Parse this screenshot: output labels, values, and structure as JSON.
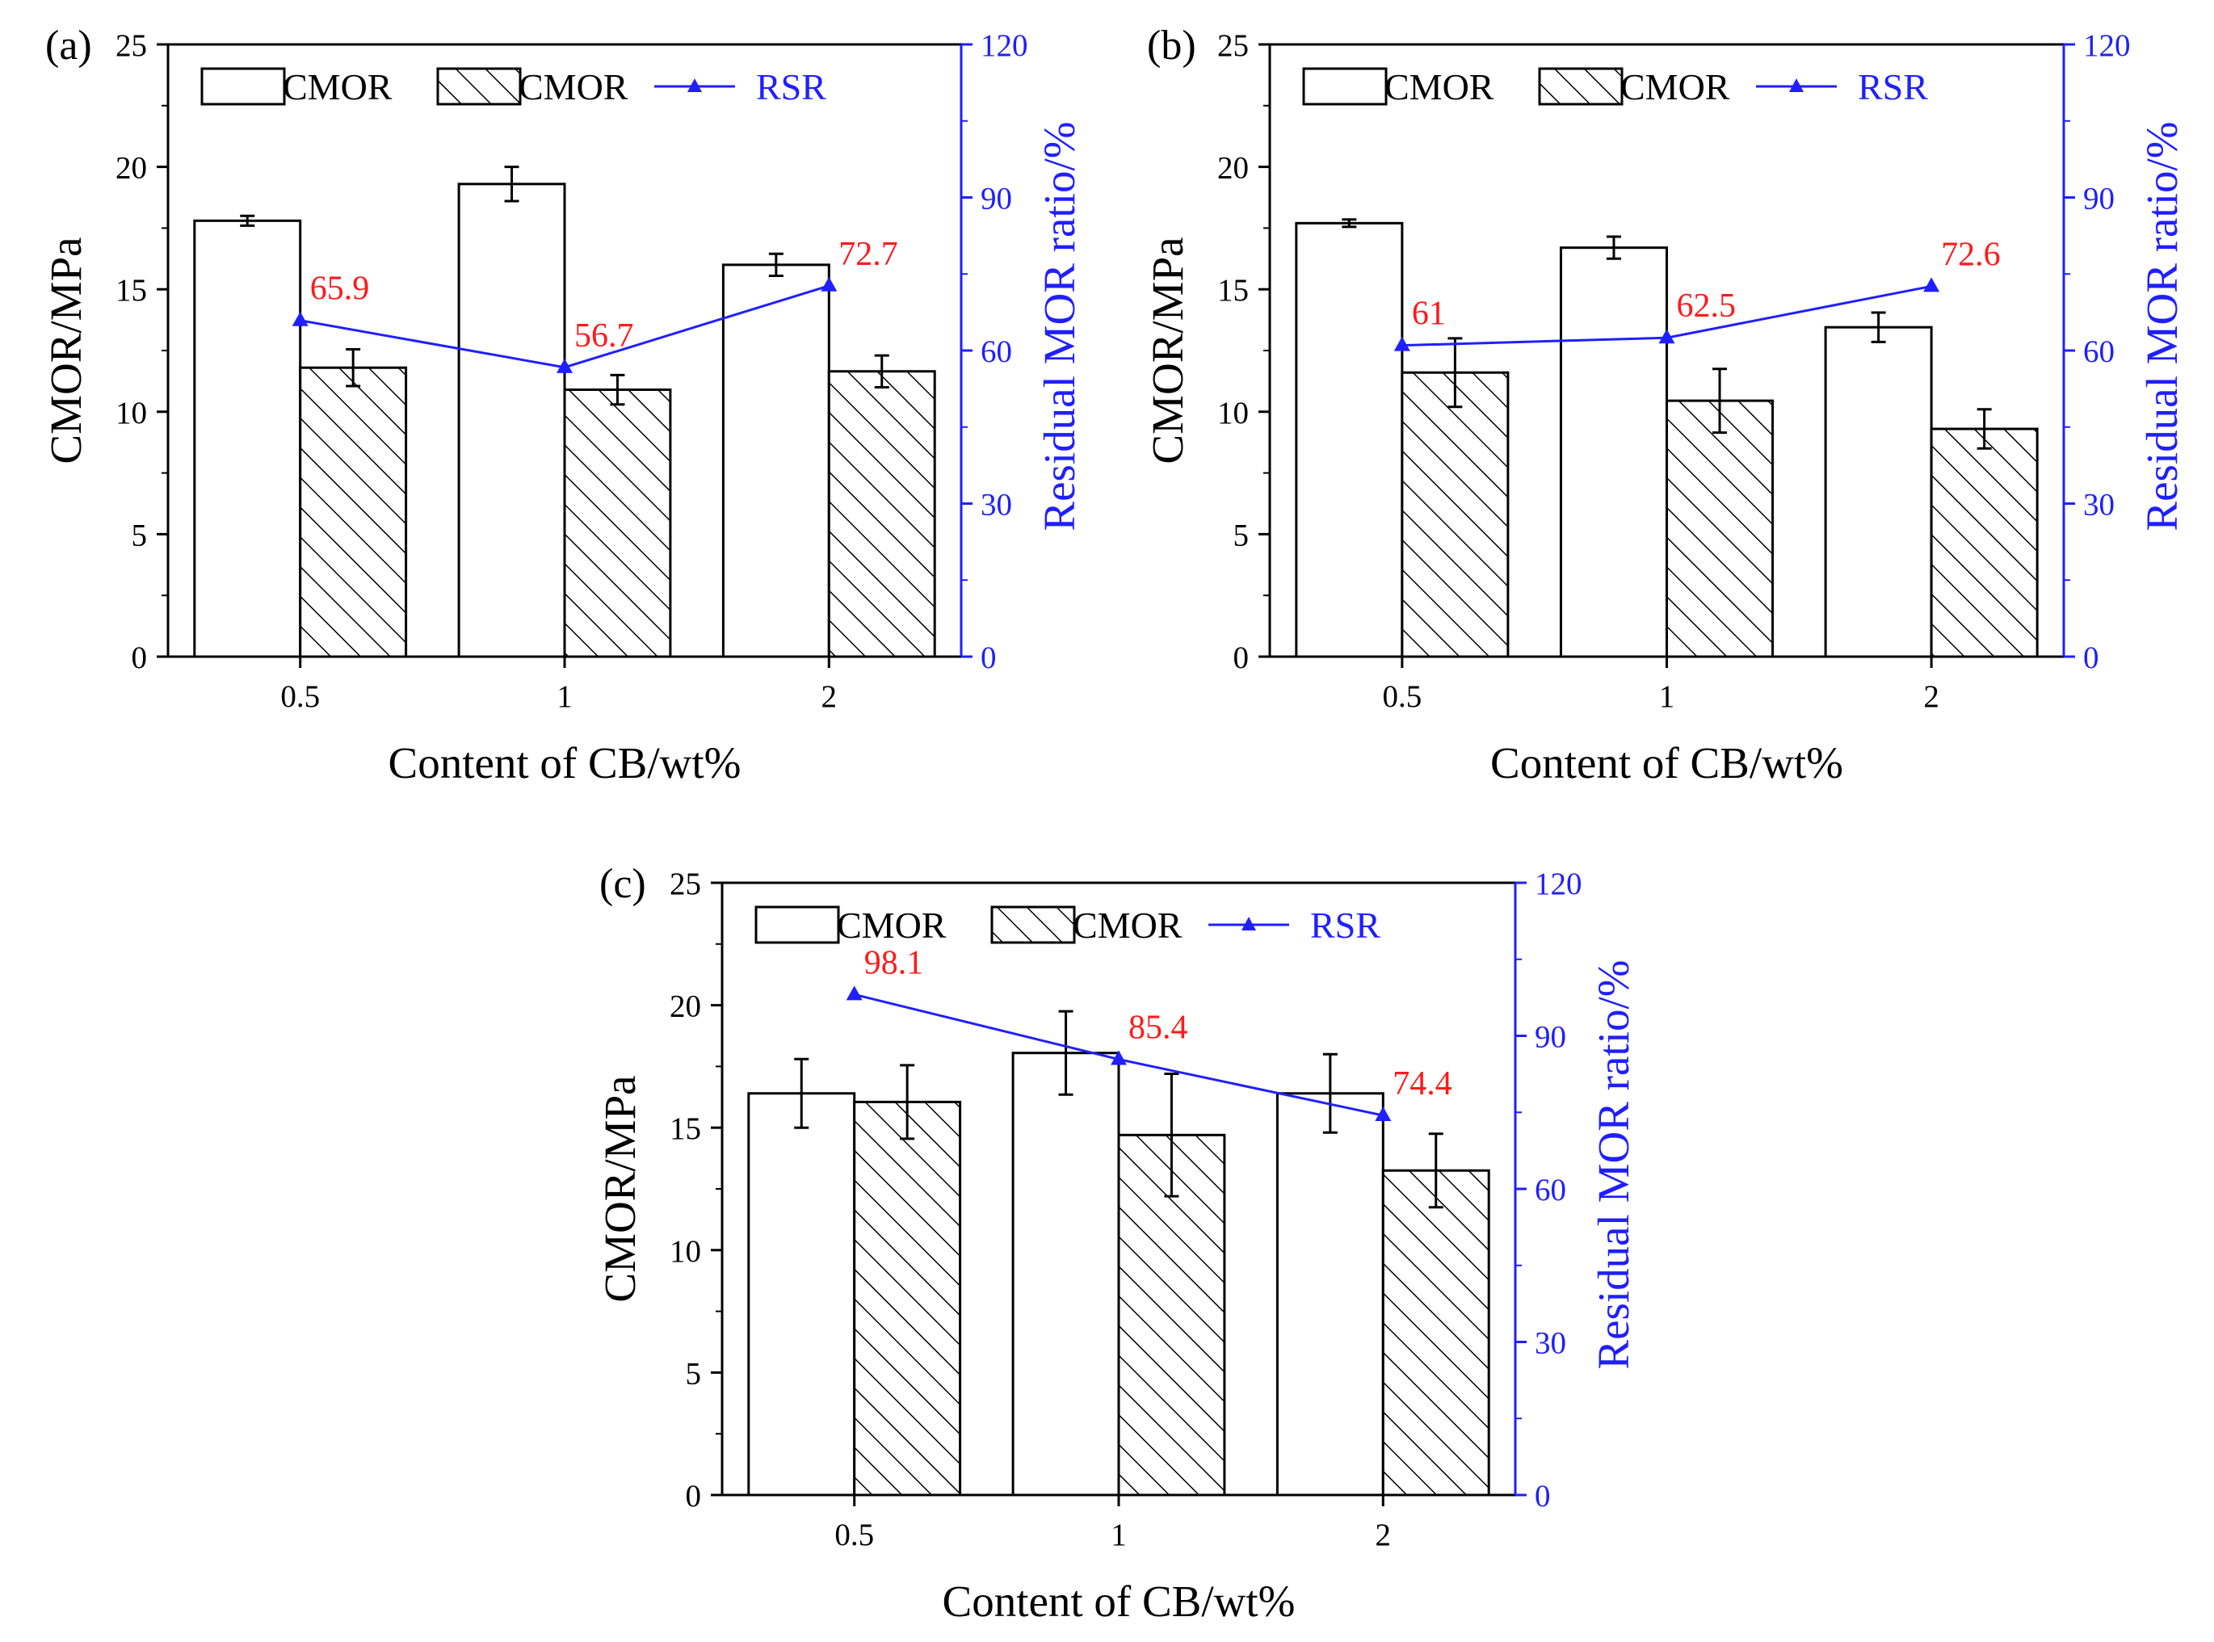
{
  "chart_data": [
    {
      "panel": "(a)",
      "type": "bar",
      "categories": [
        "0.5",
        "1",
        "2"
      ],
      "series": [
        {
          "name": "CMOR",
          "pattern": "open",
          "values": [
            17.8,
            19.3,
            16.0
          ],
          "errors": [
            0.2,
            0.7,
            0.45
          ]
        },
        {
          "name": "CMOR",
          "pattern": "hatched",
          "values": [
            11.8,
            10.9,
            11.65
          ],
          "errors": [
            0.75,
            0.6,
            0.65
          ]
        },
        {
          "name": "RSR",
          "kind": "line",
          "axis": "right",
          "values": [
            65.9,
            56.7,
            72.7
          ],
          "labels": [
            "65.9",
            "56.7",
            "72.7"
          ]
        }
      ],
      "xlabel": "Content of CB/wt%",
      "ylabel": "CMOR/MPa",
      "y2label": "Residual MOR ratio/%",
      "ylim": [
        0,
        25
      ],
      "yticks": [
        "0",
        "5",
        "10",
        "15",
        "20",
        "25"
      ],
      "y2lim": [
        0,
        120
      ],
      "y2ticks": [
        "0",
        "30",
        "60",
        "90",
        "120"
      ]
    },
    {
      "panel": "(b)",
      "type": "bar",
      "categories": [
        "0.5",
        "1",
        "2"
      ],
      "series": [
        {
          "name": "CMOR",
          "pattern": "open",
          "values": [
            17.7,
            16.7,
            13.45
          ],
          "errors": [
            0.15,
            0.45,
            0.6
          ]
        },
        {
          "name": "CMOR",
          "pattern": "hatched",
          "values": [
            11.6,
            10.45,
            9.3
          ],
          "errors": [
            1.4,
            1.3,
            0.8
          ]
        },
        {
          "name": "RSR",
          "kind": "line",
          "axis": "right",
          "values": [
            61,
            62.5,
            72.6
          ],
          "labels": [
            "61",
            "62.5",
            "72.6"
          ]
        }
      ],
      "xlabel": "Content of CB/wt%",
      "ylabel": "CMOR/MPa",
      "y2label": "Residual MOR ratio/%",
      "ylim": [
        0,
        25
      ],
      "yticks": [
        "0",
        "5",
        "10",
        "15",
        "20",
        "25"
      ],
      "y2lim": [
        0,
        120
      ],
      "y2ticks": [
        "0",
        "30",
        "60",
        "90",
        "120"
      ]
    },
    {
      "panel": "(c)",
      "type": "bar",
      "categories": [
        "0.5",
        "1",
        "2"
      ],
      "series": [
        {
          "name": "CMOR",
          "pattern": "open",
          "values": [
            16.4,
            18.05,
            16.4
          ],
          "errors": [
            1.4,
            1.7,
            1.6
          ]
        },
        {
          "name": "CMOR",
          "pattern": "hatched",
          "values": [
            16.05,
            14.7,
            13.25
          ],
          "errors": [
            1.5,
            2.5,
            1.5
          ]
        },
        {
          "name": "RSR",
          "kind": "line",
          "axis": "right",
          "values": [
            98.1,
            85.4,
            74.4
          ],
          "labels": [
            "98.1",
            "85.4",
            "74.4"
          ]
        }
      ],
      "xlabel": "Content of CB/wt%",
      "ylabel": "CMOR/MPa",
      "y2label": "Residual MOR ratio/%",
      "ylim": [
        0,
        25
      ],
      "yticks": [
        "0",
        "5",
        "10",
        "15",
        "20",
        "25"
      ],
      "y2lim": [
        0,
        120
      ],
      "y2ticks": [
        "0",
        "30",
        "60",
        "90",
        "120"
      ]
    }
  ],
  "colors": {
    "axis": "#000000",
    "right_axis": "#1f1fff",
    "rsr_line": "#1f1fff",
    "rsr_label": "#ff1a1a",
    "bar_fill": "#ffffff"
  }
}
